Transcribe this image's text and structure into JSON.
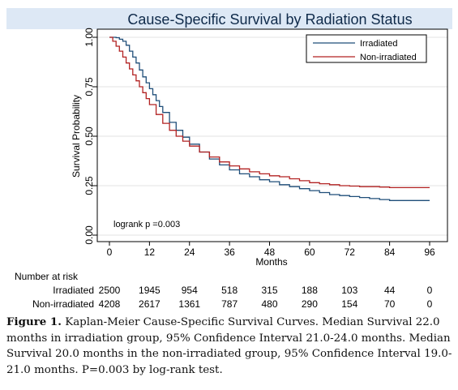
{
  "chart_data": {
    "type": "line",
    "title": "Cause-Specific Survival by Radiation Status",
    "xlabel": "Months",
    "ylabel": "Survival Probability",
    "xlim": [
      0,
      96
    ],
    "ylim": [
      0,
      1
    ],
    "x_ticks": [
      "0",
      "12",
      "24",
      "36",
      "48",
      "60",
      "72",
      "84",
      "96"
    ],
    "y_ticks": [
      "0.00",
      "0.25",
      "0.50",
      "0.75",
      "1.00"
    ],
    "legend_position": "top-right",
    "colors": {
      "Irradiated": "#1f4e79",
      "Non-irradiated": "#b22222",
      "title_bg": "#dde8f5",
      "title_text": "#0f2a4a"
    },
    "series": [
      {
        "name": "Irradiated",
        "x": [
          0,
          1,
          2,
          3,
          4,
          5,
          6,
          7,
          8,
          9,
          10,
          11,
          12,
          13,
          14,
          15,
          16,
          18,
          20,
          22,
          24,
          27,
          30,
          33,
          36,
          39,
          42,
          45,
          48,
          51,
          54,
          57,
          60,
          63,
          66,
          69,
          72,
          75,
          78,
          81,
          84,
          87,
          90,
          93,
          96
        ],
        "y": [
          1.0,
          1.0,
          0.998,
          0.99,
          0.98,
          0.96,
          0.93,
          0.9,
          0.87,
          0.835,
          0.8,
          0.77,
          0.74,
          0.71,
          0.68,
          0.65,
          0.62,
          0.57,
          0.53,
          0.495,
          0.46,
          0.42,
          0.385,
          0.355,
          0.33,
          0.31,
          0.295,
          0.28,
          0.27,
          0.255,
          0.245,
          0.235,
          0.225,
          0.215,
          0.205,
          0.2,
          0.195,
          0.19,
          0.185,
          0.18,
          0.175,
          0.175,
          0.175,
          0.175,
          0.175
        ]
      },
      {
        "name": "Non-irradiated",
        "x": [
          0,
          1,
          2,
          3,
          4,
          5,
          6,
          7,
          8,
          9,
          10,
          11,
          12,
          14,
          16,
          18,
          20,
          22,
          24,
          27,
          30,
          33,
          36,
          39,
          42,
          45,
          48,
          51,
          54,
          57,
          60,
          63,
          66,
          69,
          72,
          75,
          78,
          81,
          84,
          87,
          90,
          93,
          96
        ],
        "y": [
          1.0,
          0.98,
          0.955,
          0.93,
          0.9,
          0.87,
          0.84,
          0.81,
          0.78,
          0.75,
          0.72,
          0.69,
          0.66,
          0.61,
          0.565,
          0.53,
          0.5,
          0.475,
          0.45,
          0.42,
          0.395,
          0.37,
          0.35,
          0.335,
          0.32,
          0.31,
          0.3,
          0.295,
          0.285,
          0.275,
          0.265,
          0.26,
          0.255,
          0.25,
          0.248,
          0.245,
          0.245,
          0.243,
          0.24,
          0.24,
          0.24,
          0.24,
          0.24
        ]
      }
    ],
    "annotation": "logrank p =0.003"
  },
  "risk_table": {
    "header": "Number at risk",
    "rows": [
      {
        "label": "Irradiated",
        "values": [
          "2500",
          "1945",
          "954",
          "518",
          "315",
          "188",
          "103",
          "44",
          "0"
        ]
      },
      {
        "label": "Non-irradiated",
        "values": [
          "4208",
          "2617",
          "1361",
          "787",
          "480",
          "290",
          "154",
          "70",
          "0"
        ]
      }
    ]
  },
  "caption": {
    "label": "Figure 1.",
    "text": "Kaplan-Meier Cause-Specific Survival Curves. Median Survival 22.0 months in irradiation group, 95% Confidence Interval 21.0-24.0 months. Median Survival 20.0 months in the non-irradiated group, 95% Confidence Interval 19.0-21.0 months. P=0.003 by log-rank test."
  }
}
